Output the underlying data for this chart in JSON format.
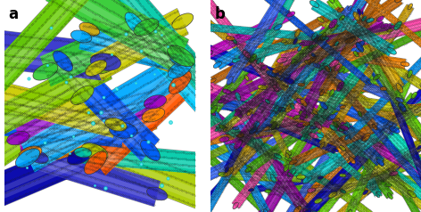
{
  "fig_width": 4.72,
  "fig_height": 2.38,
  "dpi": 100,
  "background_color": "#ffffff",
  "label_a": "a",
  "label_b": "b",
  "label_fontsize": 12,
  "label_fontweight": "bold",
  "panel_a_xlim": [
    0,
    100
  ],
  "panel_a_ylim": [
    0,
    100
  ],
  "panel_b_xlim": [
    0,
    100
  ],
  "panel_b_ylim": [
    0,
    100
  ],
  "colors_jet": [
    "#0000aa",
    "#0000ff",
    "#0055ff",
    "#00aaff",
    "#00d4d4",
    "#00cc88",
    "#33cc00",
    "#66cc00",
    "#aacc00",
    "#cccc00",
    "#ddaa00",
    "#ff8800",
    "#ff5500",
    "#ff2200",
    "#cc00cc",
    "#9900cc",
    "#660099"
  ],
  "colors_a": [
    "#3333cc",
    "#0055ff",
    "#00aaff",
    "#00ccaa",
    "#33cc33",
    "#88cc00",
    "#cccc00",
    "#ddaa00",
    "#ff8800",
    "#ff5500",
    "#9900cc",
    "#0000aa",
    "#00ccff",
    "#66cc00",
    "#aacc00"
  ],
  "colors_b": [
    "#0000cc",
    "#0055ff",
    "#0099ff",
    "#00cccc",
    "#00cc88",
    "#44bb00",
    "#88cc00",
    "#cccc00",
    "#ddaa00",
    "#ff8800",
    "#cc6600",
    "#cc00cc",
    "#9900aa",
    "#ff44aa",
    "#3366ff",
    "#00ddbb",
    "#66dd00"
  ],
  "seed_a": 7,
  "seed_b": 13,
  "n_fibers_a": 22,
  "n_fibers_b": 120
}
